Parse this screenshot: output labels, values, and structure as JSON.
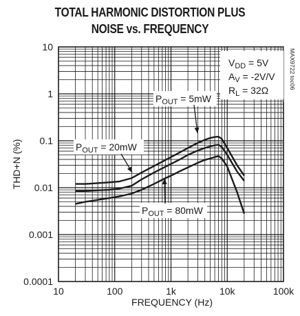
{
  "chart_data": {
    "type": "line",
    "title_line1": "TOTAL HARMONIC DISTORTION PLUS",
    "title_line2": "NOISE vs. FREQUENCY",
    "xlabel": "FREQUENCY (Hz)",
    "ylabel": "THD+N (%)",
    "x_scale": "log",
    "y_scale": "log",
    "xlim": [
      10,
      100000
    ],
    "ylim": [
      0.0001,
      10
    ],
    "x_ticks": [
      10,
      100,
      1000,
      10000,
      100000
    ],
    "x_tick_labels": [
      "10",
      "100",
      "1k",
      "10k",
      "100k"
    ],
    "y_ticks": [
      10,
      1,
      0.1,
      0.01,
      0.001,
      0.0001
    ],
    "y_tick_labels": [
      "10",
      "1",
      "0.1",
      "0.01",
      "0.001",
      "0.0001"
    ],
    "grid": true,
    "conditions": {
      "vdd": {
        "main": "V",
        "sub": "DD",
        "rest": " = 5V"
      },
      "av": {
        "main": "A",
        "sub": "V",
        "rest": " = -2V/V"
      },
      "rl": {
        "main": "R",
        "sub": "L",
        "rest": " = 32Ω"
      }
    },
    "figure_code": "MAX9722 toc06",
    "series": [
      {
        "label": {
          "main": "P",
          "sub": "OUT",
          "rest": " = 5mW"
        },
        "x": [
          20,
          30,
          50,
          80,
          120,
          200,
          300,
          500,
          800,
          1000,
          1500,
          2000,
          3000,
          4000,
          5000,
          6000,
          7000,
          8000,
          10000,
          15000,
          20000
        ],
        "y": [
          0.012,
          0.012,
          0.0125,
          0.013,
          0.0135,
          0.016,
          0.021,
          0.029,
          0.039,
          0.045,
          0.058,
          0.07,
          0.09,
          0.105,
          0.115,
          0.12,
          0.122,
          0.11,
          0.07,
          0.03,
          0.018
        ]
      },
      {
        "label": {
          "main": "P",
          "sub": "OUT",
          "rest": " = 20mW"
        },
        "x": [
          20,
          30,
          50,
          80,
          120,
          200,
          300,
          500,
          800,
          1000,
          1500,
          2000,
          3000,
          4000,
          5000,
          6000,
          7000,
          8000,
          10000,
          15000,
          20000
        ],
        "y": [
          0.0085,
          0.0085,
          0.0088,
          0.009,
          0.0095,
          0.011,
          0.015,
          0.021,
          0.028,
          0.032,
          0.041,
          0.05,
          0.062,
          0.07,
          0.076,
          0.08,
          0.082,
          0.074,
          0.05,
          0.022,
          0.014
        ]
      },
      {
        "label": {
          "main": "P",
          "sub": "OUT",
          "rest": " = 80mW"
        },
        "x": [
          20,
          30,
          50,
          80,
          120,
          200,
          300,
          500,
          800,
          1000,
          1500,
          2000,
          3000,
          4000,
          5000,
          6000,
          7000,
          8000,
          10000,
          15000,
          20000
        ],
        "y": [
          0.0045,
          0.005,
          0.0055,
          0.006,
          0.0065,
          0.0075,
          0.009,
          0.012,
          0.016,
          0.018,
          0.023,
          0.027,
          0.034,
          0.039,
          0.042,
          0.045,
          0.047,
          0.042,
          0.028,
          0.008,
          0.0028
        ]
      }
    ]
  }
}
